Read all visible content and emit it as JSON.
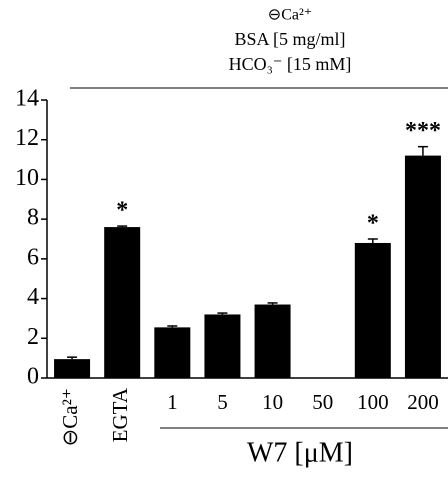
{
  "chart_data": {
    "type": "bar",
    "header": [
      "⊖Ca²⁺",
      "BSA [5 mg/ml]",
      "HCO₃⁻ [15 mM]"
    ],
    "categories": [
      "⊖Ca²⁺",
      "EGTA",
      "1",
      "5",
      "10",
      "50",
      "100",
      "200"
    ],
    "values": [
      0.95,
      7.6,
      2.55,
      3.2,
      3.7,
      null,
      6.8,
      11.2
    ],
    "errors": [
      0.1,
      0.05,
      0.07,
      0.07,
      0.08,
      null,
      0.2,
      0.45
    ],
    "annotations": [
      {
        "category": "EGTA",
        "text": "*"
      },
      {
        "category": "100",
        "text": "*"
      },
      {
        "category": "200",
        "text": "***"
      }
    ],
    "group_label": "W7 [μM]",
    "color": "#000000",
    "ylim": [
      0,
      14
    ],
    "yticks": [
      0,
      2,
      4,
      6,
      8,
      10,
      12,
      14
    ]
  }
}
